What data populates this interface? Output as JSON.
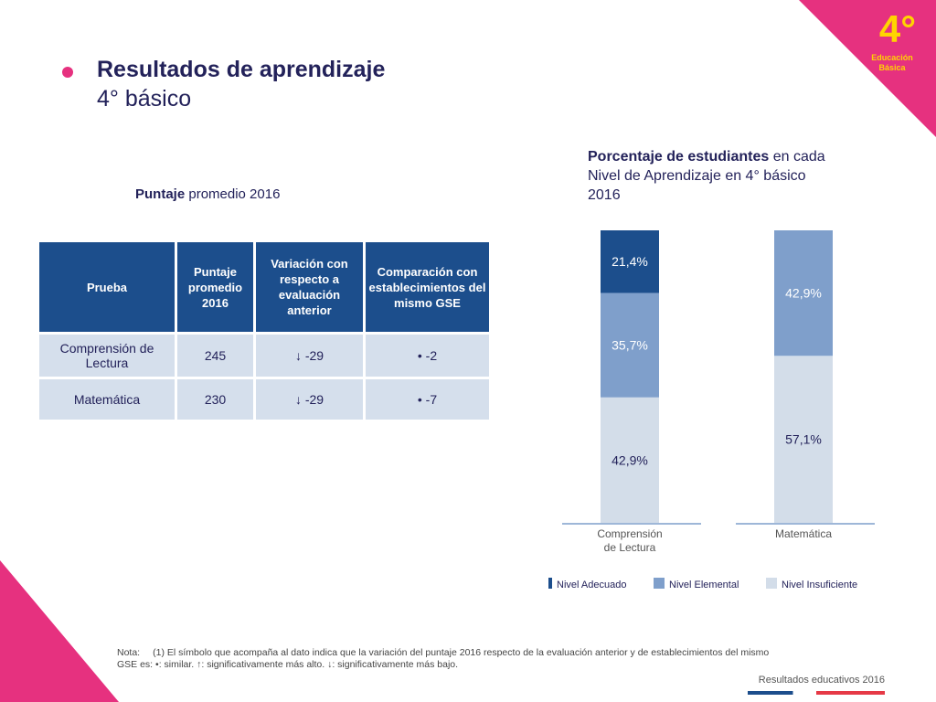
{
  "badge": {
    "number": "4°",
    "line1": "Educación",
    "line2": "Básica"
  },
  "header": {
    "title": "Resultados de aprendizaje",
    "subtitle": "4° básico"
  },
  "table": {
    "caption_bold": "Puntaje",
    "caption_rest": " promedio 2016",
    "headers": [
      "Prueba",
      "Puntaje promedio 2016",
      "Variación con respecto a evaluación anterior",
      "Comparación con establecimientos del mismo GSE"
    ],
    "rows": [
      {
        "prueba": "Comprensión de Lectura",
        "puntaje": "245",
        "variacion": "↓ -29",
        "comparacion": "• -2"
      },
      {
        "prueba": "Matemática",
        "puntaje": "230",
        "variacion": "↓ -29",
        "comparacion": "• -7"
      }
    ]
  },
  "chart_header": {
    "bold": "Porcentaje de estudiantes",
    "rest": " en cada Nivel de Aprendizaje en 4° básico 2016"
  },
  "chart_data": {
    "type": "bar",
    "stacked": true,
    "categories": [
      "Comprensión de Lectura",
      "Matemática"
    ],
    "series": [
      {
        "name": "Nivel Adecuado",
        "color": "#1c4e8c",
        "values": [
          21.4,
          0
        ],
        "labels": [
          "21,4%",
          ""
        ]
      },
      {
        "name": "Nivel Elemental",
        "color": "#7f9fcb",
        "values": [
          35.7,
          42.9
        ],
        "labels": [
          "35,7%",
          "42,9%"
        ]
      },
      {
        "name": "Nivel Insuficiente",
        "color": "#d3dde9",
        "values": [
          42.9,
          57.1
        ],
        "labels": [
          "42,9%",
          "57,1%"
        ]
      }
    ],
    "ylim": [
      0,
      100
    ],
    "legend": "bottom"
  },
  "note": {
    "label": "Nota:",
    "text": "(1) El símbolo que acompaña al dato indica que la variación del puntaje 2016 respecto de la evaluación anterior y de establecimientos del mismo GSE es:   •: similar.    ↑: significativamente más alto.   ↓: significativamente más bajo."
  },
  "footer": {
    "brand": "Resultados educativos 2016"
  }
}
